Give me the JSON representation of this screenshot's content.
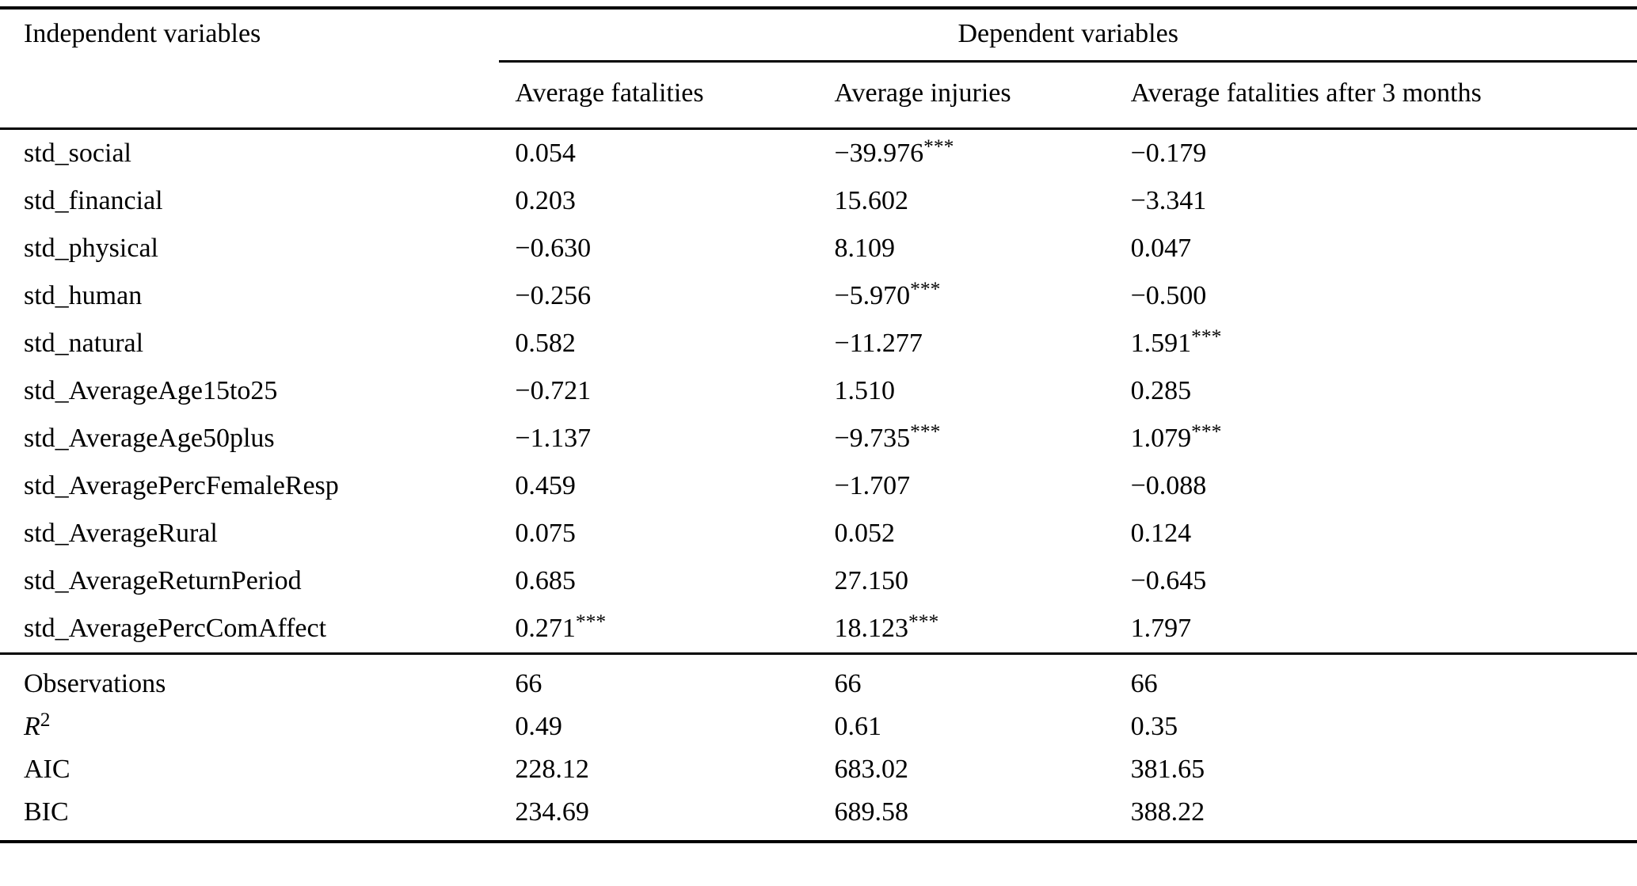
{
  "table": {
    "header": {
      "independent": "Independent variables",
      "dependent_group": "Dependent variables",
      "columns": [
        "Average fatalities",
        "Average injuries",
        "Average fatalities after 3 months"
      ]
    },
    "rows": [
      {
        "label": "std_social",
        "cells": [
          {
            "v": "0.054",
            "s": ""
          },
          {
            "v": "−39.976",
            "s": "***"
          },
          {
            "v": "−0.179",
            "s": ""
          }
        ]
      },
      {
        "label": "std_financial",
        "cells": [
          {
            "v": "0.203",
            "s": ""
          },
          {
            "v": "15.602",
            "s": ""
          },
          {
            "v": "−3.341",
            "s": ""
          }
        ]
      },
      {
        "label": "std_physical",
        "cells": [
          {
            "v": "−0.630",
            "s": ""
          },
          {
            "v": "8.109",
            "s": ""
          },
          {
            "v": "0.047",
            "s": ""
          }
        ]
      },
      {
        "label": "std_human",
        "cells": [
          {
            "v": "−0.256",
            "s": ""
          },
          {
            "v": "−5.970",
            "s": "***"
          },
          {
            "v": "−0.500",
            "s": ""
          }
        ]
      },
      {
        "label": "std_natural",
        "cells": [
          {
            "v": "0.582",
            "s": ""
          },
          {
            "v": "−11.277",
            "s": ""
          },
          {
            "v": "1.591",
            "s": "***"
          }
        ]
      },
      {
        "label": "std_AverageAge15to25",
        "cells": [
          {
            "v": "−0.721",
            "s": ""
          },
          {
            "v": "1.510",
            "s": ""
          },
          {
            "v": "0.285",
            "s": ""
          }
        ]
      },
      {
        "label": "std_AverageAge50plus",
        "cells": [
          {
            "v": "−1.137",
            "s": ""
          },
          {
            "v": "−9.735",
            "s": "***"
          },
          {
            "v": "1.079",
            "s": "***"
          }
        ]
      },
      {
        "label": "std_AveragePercFemaleResp",
        "cells": [
          {
            "v": "0.459",
            "s": ""
          },
          {
            "v": "−1.707",
            "s": ""
          },
          {
            "v": "−0.088",
            "s": ""
          }
        ]
      },
      {
        "label": "std_AverageRural",
        "cells": [
          {
            "v": "0.075",
            "s": ""
          },
          {
            "v": "0.052",
            "s": ""
          },
          {
            "v": "0.124",
            "s": ""
          }
        ]
      },
      {
        "label": "std_AverageReturnPeriod",
        "cells": [
          {
            "v": "0.685",
            "s": ""
          },
          {
            "v": "27.150",
            "s": ""
          },
          {
            "v": "−0.645",
            "s": ""
          }
        ]
      },
      {
        "label": "std_AveragePercComAffect",
        "cells": [
          {
            "v": "0.271",
            "s": "***"
          },
          {
            "v": "18.123",
            "s": "***"
          },
          {
            "v": "1.797",
            "s": ""
          }
        ]
      }
    ],
    "stats": [
      {
        "label": "Observations",
        "sup": "",
        "cells": [
          "66",
          "66",
          "66"
        ]
      },
      {
        "label": "R",
        "sup": "2",
        "cells": [
          "0.49",
          "0.61",
          "0.35"
        ]
      },
      {
        "label": "AIC",
        "sup": "",
        "cells": [
          "228.12",
          "683.02",
          "381.65"
        ]
      },
      {
        "label": "BIC",
        "sup": "",
        "cells": [
          "234.69",
          "689.58",
          "388.22"
        ]
      }
    ]
  }
}
